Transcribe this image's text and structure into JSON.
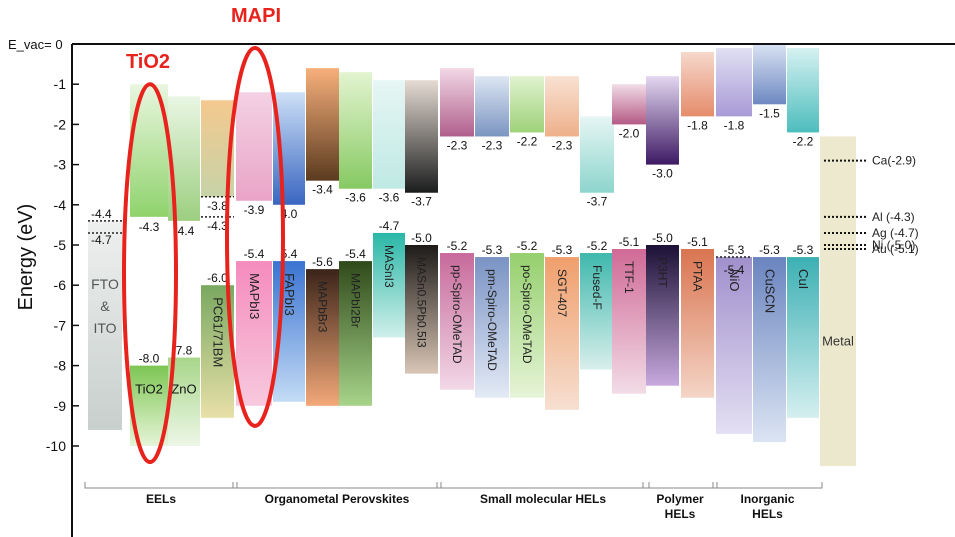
{
  "chart_data": {
    "type": "bar",
    "subtype": "floating-band energy level diagram",
    "ylabel": "Energy (eV)",
    "yzero_label": "E_vac= 0",
    "ylim": [
      -10.5,
      0
    ],
    "y_ticks": [
      "0",
      "-1",
      "-2",
      "-3",
      "-4",
      "-5",
      "-6",
      "-7",
      "-8",
      "-9",
      "-10"
    ],
    "grid": false,
    "legend": "none",
    "materials": [
      {
        "label": "FTO & ITO",
        "lumo": null,
        "homo": null,
        "top_label": "-4.4",
        "top_value": -4.4,
        "second_label": "-4.7",
        "second_value": -4.7,
        "band_range": [
          -4.4,
          -9.6
        ]
      },
      {
        "label": "TiO2",
        "lumo": -4.3,
        "homo": -8.0,
        "lumo_label": "-4.3",
        "homo_label": "-8.0"
      },
      {
        "label": "ZnO",
        "lumo": -4.4,
        "homo": -7.8,
        "lumo_label": "-4.4",
        "homo_label": "7.8"
      },
      {
        "label": "PC61/71BM",
        "lumo": -3.8,
        "lumo2": -4.3,
        "homo": -6.0,
        "lumo_label": "-3.8",
        "lumo2_label": "-4.3",
        "homo_label": "-6.0"
      },
      {
        "label": "MAPbI3",
        "lumo": -3.9,
        "homo": -5.4,
        "lumo_label": "-3.9",
        "homo_label": "-5.4"
      },
      {
        "label": "FAPbI3",
        "lumo": -4.0,
        "homo": -5.4,
        "lumo_label": "4.0",
        "homo_label": "5.4"
      },
      {
        "label": "MAPbBr3",
        "lumo": -3.4,
        "homo": -5.6,
        "lumo_label": "-3.4",
        "homo_label": "-5.6"
      },
      {
        "label": "MAPbI2Br",
        "lumo": -3.6,
        "homo": -5.4,
        "lumo_label": "-3.6",
        "homo_label": "-5.4"
      },
      {
        "label": "MASnI3",
        "lumo": -3.6,
        "homo": -4.7,
        "lumo_label": "-3.6",
        "homo_label": "-4.7"
      },
      {
        "label": "MASn0.5Pb0.5I3",
        "lumo": -3.7,
        "homo": -5.0,
        "lumo_label": "-3.7",
        "homo_label": "-5.0"
      },
      {
        "label": "pp-Spiro-OMeTAD",
        "lumo": -2.3,
        "homo": -5.2,
        "lumo_label": "-2.3",
        "homo_label": "-5.2"
      },
      {
        "label": "pm-Spiro-OMeTAD",
        "lumo": -2.3,
        "homo": -5.3,
        "lumo_label": "-2.3",
        "homo_label": "-5.3"
      },
      {
        "label": "po-Spiro-OMeTAD",
        "lumo": -2.2,
        "homo": -5.2,
        "lumo_label": "-2.2",
        "homo_label": "-5.2"
      },
      {
        "label": "SGT-407",
        "lumo": -2.3,
        "homo": -5.3,
        "lumo_label": "-2.3",
        "homo_label": "-5.3"
      },
      {
        "label": "Fused-F",
        "lumo": -3.7,
        "homo": -5.2,
        "lumo_label": "-3.7",
        "homo_label": "-5.2"
      },
      {
        "label": "TTF-1",
        "lumo": -2.0,
        "homo": -5.1,
        "lumo_label": "-2.0",
        "homo_label": "-5.1"
      },
      {
        "label": "P3HT",
        "lumo": -3.0,
        "homo": -5.0,
        "lumo_label": "-3.0",
        "homo_label": "-5.0"
      },
      {
        "label": "PTAA",
        "lumo": -1.8,
        "homo": -5.1,
        "lumo_label": "-1.8",
        "homo_label": "-5.1"
      },
      {
        "label": "NiO",
        "lumo": -1.8,
        "homo": -5.3,
        "homo2": -5.4,
        "lumo_label": "-1.8",
        "homo_label": "-5.3",
        "homo2_label": "-5.4"
      },
      {
        "label": "CuSCN",
        "lumo": -1.5,
        "homo": -5.3,
        "lumo_label": "-1.5",
        "homo_label": "-5.3"
      },
      {
        "label": "CuI",
        "lumo": -2.2,
        "homo": -5.3,
        "lumo_label": "-2.2",
        "homo_label": "-5.3"
      },
      {
        "label": "Metal",
        "lumo": null,
        "homo": null
      }
    ],
    "metals": [
      {
        "label": "Ca(-2.9)",
        "value": -2.9
      },
      {
        "label": "Al (-4.3)",
        "value": -4.3
      },
      {
        "label": "Ag (-4.7)",
        "value": -4.7
      },
      {
        "label": "Ni (-5.0)",
        "value": -5.0
      },
      {
        "label": "Au (-5.1)",
        "value": -5.1
      }
    ],
    "groups": [
      {
        "label": "EELs",
        "from": 0,
        "to": 3
      },
      {
        "label": "Organometal Perovskites",
        "from": 4,
        "to": 9
      },
      {
        "label": "Small molecular HELs",
        "from": 10,
        "to": 15
      },
      {
        "label": "Polymer HELs",
        "from": 16,
        "to": 17
      },
      {
        "label": "Inorganic HELs",
        "from": 18,
        "to": 20
      }
    ],
    "annotations": [
      {
        "label": "TiO2",
        "target": "TiO2",
        "color": "#e8221c"
      },
      {
        "label": "MAPI",
        "target": "MAPbI3",
        "color": "#e8221c"
      }
    ]
  }
}
